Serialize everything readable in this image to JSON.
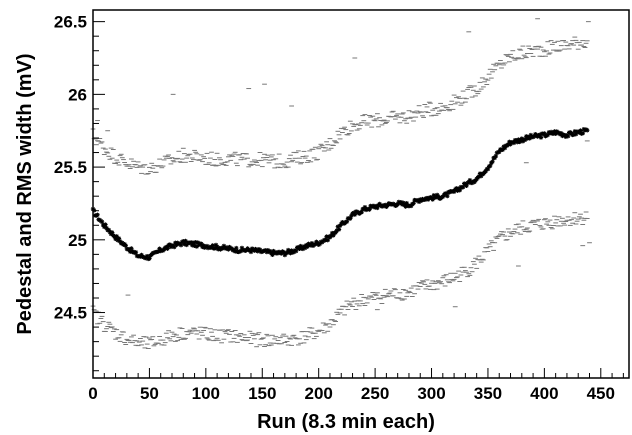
{
  "chart_data": {
    "type": "scatter",
    "title": "",
    "xlabel": "Run (8.3 min each)",
    "ylabel": "Pedestal and RMS width (mV)",
    "xlim": [
      0,
      475
    ],
    "ylim": [
      24.05,
      26.58
    ],
    "x_ticks": [
      0,
      50,
      100,
      150,
      200,
      250,
      300,
      350,
      400,
      450
    ],
    "x_tick_labels": [
      "0",
      "50",
      "100",
      "150",
      "200",
      "250",
      "300",
      "350",
      "400",
      "450"
    ],
    "y_ticks": [
      24.5,
      25,
      25.5,
      26,
      26.5
    ],
    "y_tick_labels": [
      "24.5",
      "25",
      "25.5",
      "26",
      "26.5"
    ],
    "grid": false,
    "legend": "none",
    "series": [
      {
        "style": "star",
        "color": "#000000",
        "x": [
          0,
          10,
          20,
          30,
          40,
          50,
          60,
          70,
          80,
          90,
          100,
          110,
          120,
          130,
          140,
          150,
          160,
          170,
          180,
          190,
          200,
          210,
          220,
          230,
          240,
          250,
          260,
          270,
          280,
          290,
          300,
          310,
          320,
          330,
          340,
          350,
          360,
          370,
          380,
          390,
          400,
          410,
          420,
          430,
          438
        ],
        "y": [
          25.2,
          25.1,
          25.02,
          24.95,
          24.89,
          24.88,
          24.93,
          24.96,
          24.98,
          24.97,
          24.96,
          24.95,
          24.94,
          24.93,
          24.93,
          24.92,
          24.91,
          24.91,
          24.93,
          24.96,
          24.98,
          25.02,
          25.1,
          25.17,
          25.21,
          25.23,
          25.24,
          25.25,
          25.24,
          25.28,
          25.29,
          25.3,
          25.33,
          25.38,
          25.42,
          25.5,
          25.61,
          25.67,
          25.69,
          25.71,
          25.72,
          25.74,
          25.72,
          25.74,
          25.75
        ]
      },
      {
        "style": "dash",
        "color": "#777777",
        "x": [
          0,
          10,
          20,
          30,
          40,
          50,
          60,
          70,
          80,
          90,
          100,
          110,
          120,
          130,
          140,
          150,
          160,
          170,
          180,
          190,
          200,
          210,
          220,
          230,
          240,
          250,
          260,
          270,
          280,
          290,
          300,
          310,
          320,
          330,
          340,
          350,
          360,
          370,
          380,
          390,
          400,
          410,
          420,
          430,
          438
        ],
        "y": [
          25.72,
          25.63,
          25.57,
          25.53,
          25.5,
          25.49,
          25.52,
          25.55,
          25.58,
          25.57,
          25.56,
          25.55,
          25.56,
          25.55,
          25.55,
          25.55,
          25.54,
          25.54,
          25.56,
          25.58,
          25.6,
          25.66,
          25.74,
          25.79,
          25.81,
          25.82,
          25.83,
          25.84,
          25.85,
          25.88,
          25.9,
          25.91,
          25.95,
          25.99,
          26.04,
          26.12,
          26.2,
          26.26,
          26.28,
          26.3,
          26.31,
          26.33,
          26.34,
          26.36,
          26.37
        ]
      },
      {
        "style": "dash",
        "color": "#777777",
        "x": [
          0,
          10,
          20,
          30,
          40,
          50,
          60,
          70,
          80,
          90,
          100,
          110,
          120,
          130,
          140,
          150,
          160,
          170,
          180,
          190,
          200,
          210,
          220,
          230,
          240,
          250,
          260,
          270,
          280,
          290,
          300,
          310,
          320,
          330,
          340,
          350,
          360,
          370,
          380,
          390,
          400,
          410,
          420,
          430,
          438
        ],
        "y": [
          24.5,
          24.42,
          24.36,
          24.32,
          24.29,
          24.28,
          24.31,
          24.34,
          24.36,
          24.36,
          24.35,
          24.34,
          24.34,
          24.33,
          24.32,
          24.31,
          24.31,
          24.31,
          24.32,
          24.34,
          24.37,
          24.42,
          24.5,
          24.56,
          24.59,
          24.6,
          24.62,
          24.63,
          24.64,
          24.67,
          24.69,
          24.71,
          24.74,
          24.78,
          24.84,
          24.92,
          25.0,
          25.05,
          25.08,
          25.1,
          25.11,
          25.13,
          25.14,
          25.15,
          25.16
        ]
      }
    ],
    "outliers": {
      "x": [
        4,
        13,
        31,
        71,
        138,
        152,
        176,
        232,
        252,
        321,
        333,
        377,
        383,
        384,
        394,
        439,
        440,
        434,
        438
      ],
      "y": [
        25.82,
        25.75,
        24.62,
        26.0,
        26.04,
        26.07,
        25.92,
        26.25,
        24.52,
        24.54,
        26.43,
        24.82,
        26.58,
        25.53,
        26.52,
        26.5,
        24.98,
        24.96,
        25.68
      ]
    }
  }
}
